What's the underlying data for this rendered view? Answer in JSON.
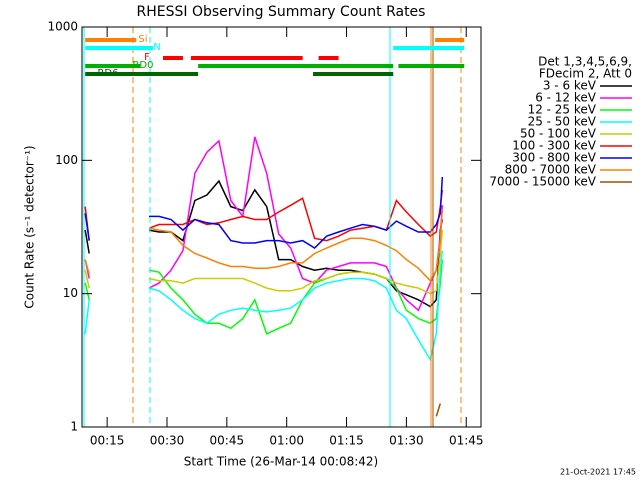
{
  "chart_data": {
    "type": "line",
    "title": "RHESSI Observing Summary Count Rates",
    "x_label": "Start Time (26-Mar-14 00:08:42)",
    "y_label": "Count Rate (s⁻¹ detector⁻¹)",
    "legend_header": [
      "Det 1,3,4,5,6,9,",
      "FDecim 2, Att 0"
    ],
    "footnote": "21-Oct-2021 17:45",
    "log_y": true,
    "xlim": [
      8.7,
      108.7
    ],
    "ylim": [
      1,
      1000
    ],
    "xticks": [
      {
        "value": 15,
        "label": "00:15"
      },
      {
        "value": 30,
        "label": "00:30"
      },
      {
        "value": 45,
        "label": "00:45"
      },
      {
        "value": 60,
        "label": "01:00"
      },
      {
        "value": 75,
        "label": "01:15"
      },
      {
        "value": 90,
        "label": "01:30"
      },
      {
        "value": 105,
        "label": "01:45"
      }
    ],
    "yticks": [
      1,
      10,
      100,
      1000
    ],
    "x": [
      9.5,
      10.5,
      17,
      25.5,
      28,
      31,
      34,
      37,
      40,
      43,
      46,
      49,
      52,
      55,
      58,
      61,
      64,
      67,
      70,
      73,
      76,
      79,
      82,
      85,
      87.5,
      90,
      93,
      96,
      97.5,
      98.5,
      99
    ],
    "series": [
      {
        "name": "3 - 6 keV",
        "color": "#000000",
        "values": [
          30,
          20,
          null,
          30,
          29,
          29,
          25,
          50,
          55,
          70,
          45,
          42,
          60,
          45,
          18,
          18,
          16,
          15,
          15.5,
          15,
          15,
          14.5,
          14,
          13,
          10.5,
          9.8,
          9,
          8,
          9,
          30,
          36
        ]
      },
      {
        "name": "6 - 12 keV",
        "color": "#ff00ff",
        "values": [
          18,
          13,
          null,
          11,
          12,
          15,
          21,
          80,
          115,
          140,
          50,
          38,
          150,
          80,
          28,
          22,
          13,
          12,
          15,
          16,
          17,
          17,
          17,
          16,
          11,
          9,
          7.5,
          12,
          15,
          27,
          46
        ]
      },
      {
        "name": "12 - 25 keV",
        "color": "#00ff00",
        "values": [
          12,
          9,
          null,
          15,
          14.5,
          11,
          9,
          7,
          6,
          6,
          5.5,
          6.5,
          9,
          5,
          5.5,
          6,
          9,
          12,
          13,
          14,
          14.5,
          14.5,
          14,
          13,
          11,
          7.5,
          6.5,
          6,
          6.5,
          12,
          18
        ]
      },
      {
        "name": "25 - 50 keV",
        "color": "#00ffff",
        "values": [
          5,
          9,
          null,
          11,
          10.5,
          9,
          7.5,
          6.5,
          6,
          7,
          7.5,
          7.8,
          7.5,
          7.3,
          7.5,
          7.8,
          9,
          11,
          12,
          12.5,
          13,
          13,
          12.5,
          11,
          7.5,
          6.5,
          4.5,
          3.2,
          5,
          15,
          21
        ]
      },
      {
        "name": "50 - 100 keV",
        "color": "#cccc00",
        "values": [
          15,
          11,
          null,
          13,
          12.5,
          12.5,
          12,
          13,
          13,
          13,
          13,
          13,
          12,
          11,
          10.5,
          10.5,
          11,
          12.5,
          13,
          14,
          14.5,
          14.5,
          14,
          13,
          12,
          11.5,
          11,
          10,
          10.5,
          20,
          30
        ]
      },
      {
        "name": "100 - 300 keV",
        "color": "#ff0000",
        "values": [
          45,
          25,
          null,
          31,
          33,
          33,
          33,
          36,
          33,
          34,
          36,
          38,
          36,
          36,
          41,
          46,
          52,
          26,
          25,
          27,
          30,
          31,
          32,
          30,
          50,
          41,
          33,
          27,
          29,
          45,
          60
        ]
      },
      {
        "name": "300 - 800 keV",
        "color": "#0000ff",
        "values": [
          40,
          25,
          null,
          38,
          38,
          36,
          30,
          36,
          34,
          33,
          25,
          24,
          24,
          25,
          25,
          24,
          25,
          22,
          27,
          29,
          31,
          33,
          32,
          30,
          35,
          32,
          29,
          29,
          33,
          40,
          75
        ]
      },
      {
        "name": "800 - 7000 keV",
        "color": "#ff8000",
        "values": [
          18,
          14,
          null,
          31,
          30,
          29,
          23,
          20,
          18.5,
          17,
          16,
          16,
          15.5,
          15.5,
          16,
          17,
          17,
          20,
          22,
          24,
          26,
          26,
          25,
          23,
          21,
          18,
          15.5,
          12.5,
          15,
          25,
          43
        ]
      },
      {
        "name": "7000 - 15000 keV",
        "color": "#a05000",
        "values": [
          null,
          null,
          null,
          null,
          null,
          null,
          null,
          null,
          null,
          null,
          null,
          null,
          null,
          null,
          null,
          null,
          null,
          null,
          null,
          null,
          null,
          null,
          null,
          null,
          null,
          null,
          null,
          null,
          1.2,
          1.5,
          null
        ]
      }
    ],
    "flags": [
      {
        "label": "Si",
        "color": "#ff8000",
        "intervals": [
          [
            9.5,
            22.3
          ],
          [
            97.2,
            104.5
          ]
        ]
      },
      {
        "label": "N",
        "color": "#00ffff",
        "intervals": [
          [
            9.5,
            26.5
          ],
          [
            86.7,
            104.5
          ]
        ]
      },
      {
        "label": "F",
        "color": "#ff0000",
        "intervals": [
          [
            29,
            34
          ],
          [
            36,
            64
          ],
          [
            68,
            73
          ]
        ]
      },
      {
        "label": "RD0",
        "color": "#00b000",
        "intervals": [
          [
            9.5,
            23.3
          ],
          [
            37.8,
            86.7
          ],
          [
            88,
            104.5
          ]
        ]
      },
      {
        "label": "RD6",
        "color": "#006400",
        "intervals": [
          [
            9.5,
            37.8
          ],
          [
            66.6,
            86.7
          ]
        ]
      }
    ]
  }
}
